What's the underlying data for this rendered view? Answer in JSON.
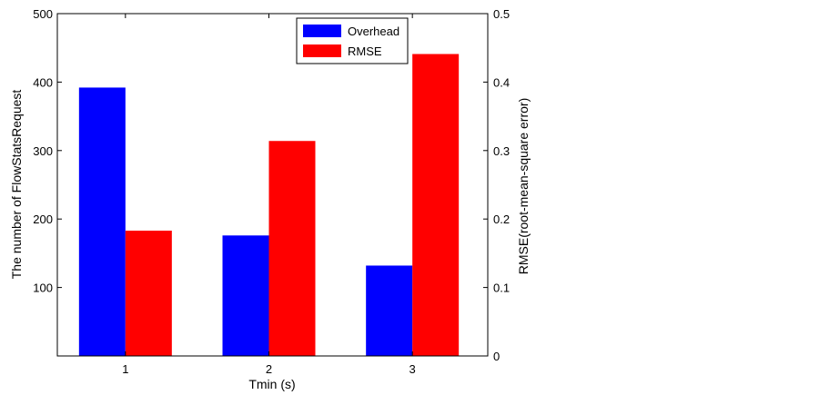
{
  "chart_data": {
    "type": "bar",
    "categories": [
      "1",
      "2",
      "3"
    ],
    "xlabel": "Tmin (s)",
    "ylabel_left": "The number of FlowStatsRequest",
    "ylabel_right": "RMSE(root-mean-square error)",
    "ylim_left": [
      0,
      500
    ],
    "ylim_right": [
      0,
      0.5
    ],
    "yticks_left": [
      "100",
      "200",
      "300",
      "400",
      "500"
    ],
    "yticks_right": [
      "0",
      "0.1",
      "0.2",
      "0.3",
      "0.4",
      "0.5"
    ],
    "grid": false,
    "legend_position": "top-center",
    "series": [
      {
        "name": "Overhead",
        "axis": "left",
        "color": "#0000ff",
        "values": [
          392,
          176,
          132
        ]
      },
      {
        "name": "RMSE",
        "axis": "right",
        "color": "#ff0000",
        "values": [
          0.183,
          0.314,
          0.441
        ]
      }
    ]
  }
}
